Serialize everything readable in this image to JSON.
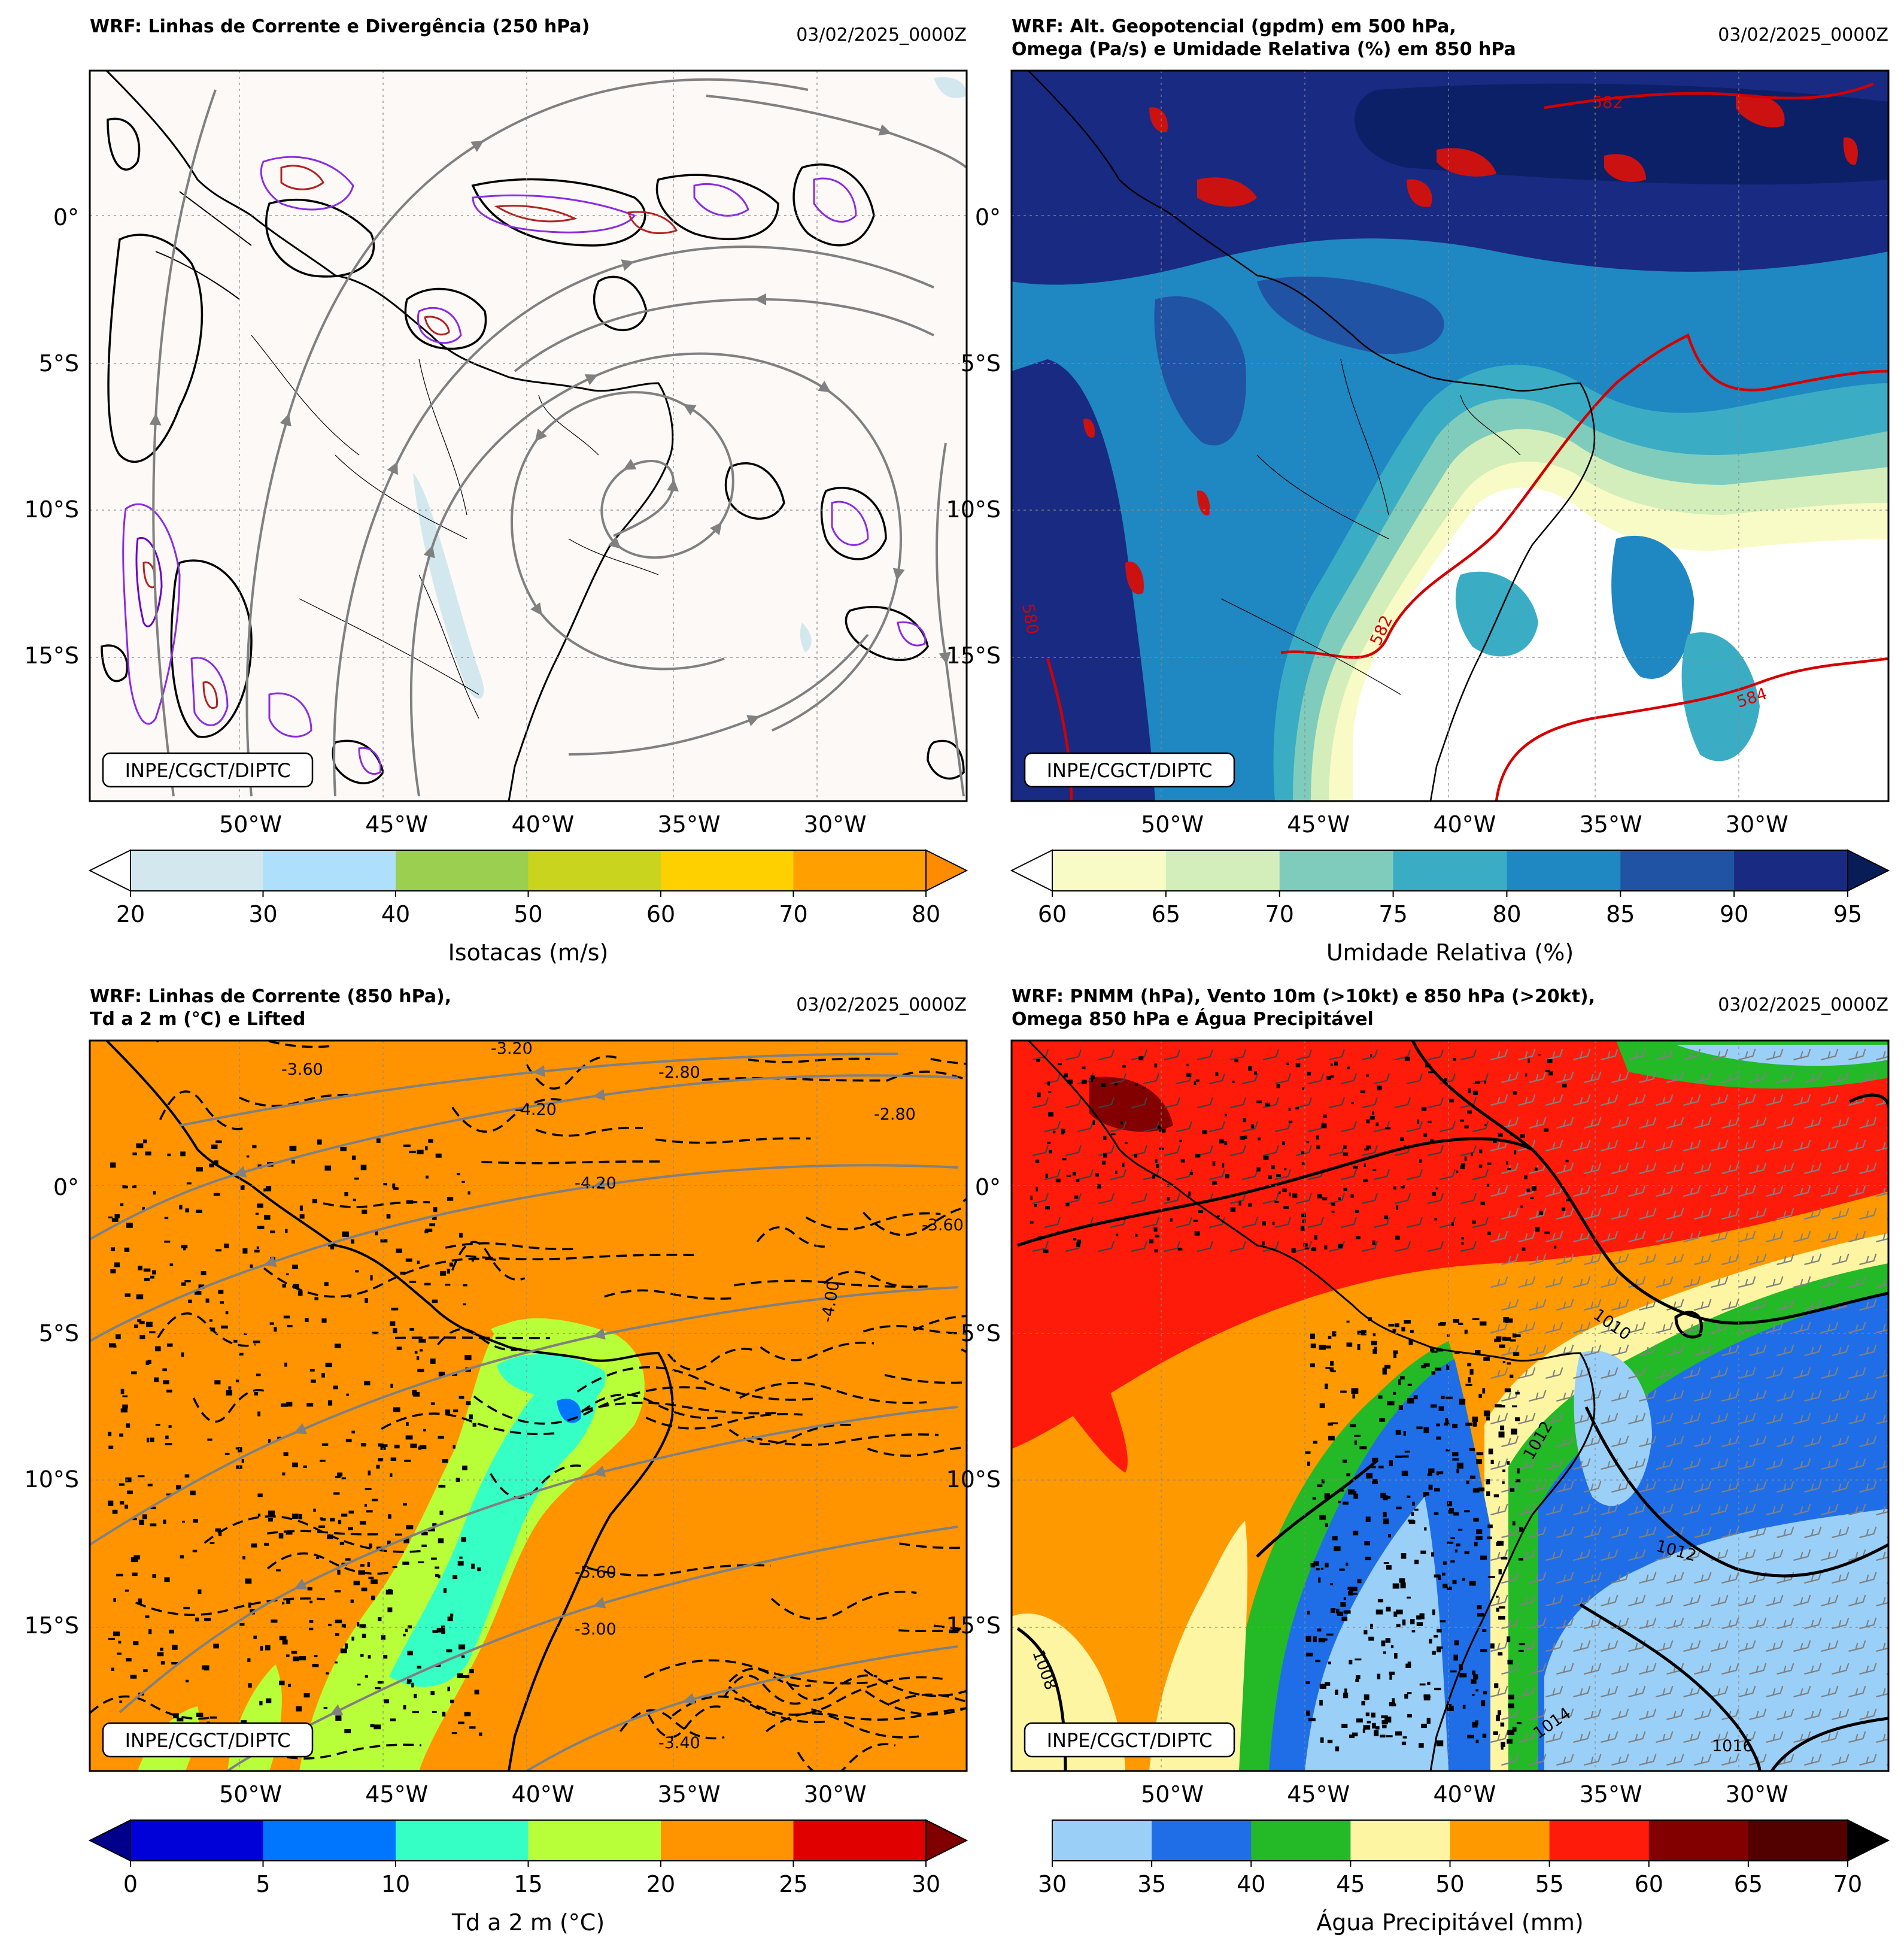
{
  "figure": {
    "organization_label": "INPE/CGCT/DIPTC",
    "datetime": "03/02/2025_0000Z"
  },
  "axes": {
    "lon_ticks": [
      "50°W",
      "45°W",
      "40°W",
      "35°W",
      "30°W"
    ],
    "lat_ticks": [
      "0°",
      "5°S",
      "10°S",
      "15°S"
    ],
    "lon_range": [
      -55.5,
      -25.5
    ],
    "lat_range": [
      -20,
      5
    ]
  },
  "panels": [
    {
      "id": "p1",
      "title_lines": [
        "WRF: Linhas de Corrente e Divergência (250 hPa)"
      ],
      "colorbar": {
        "label": "Isotacas (m/s)",
        "ticks": [
          "20",
          "30",
          "40",
          "50",
          "60",
          "70",
          "80"
        ],
        "colors": [
          "#d2e8ee",
          "#aee0fc",
          "#9acf50",
          "#c8d41e",
          "#ffd000",
          "#ffa000"
        ],
        "under_color": "#ffffff",
        "over_color": "#ff8c00"
      }
    },
    {
      "id": "p2",
      "title_lines": [
        "WRF: Alt. Geopotencial (gpdm) em 500 hPa,",
        "Omega (Pa/s) e Umidade Relativa (%) em 850 hPa"
      ],
      "contour_labels": [
        "582",
        "582",
        "584",
        "580"
      ],
      "colorbar": {
        "label": "Umidade Relativa (%)",
        "ticks": [
          "60",
          "65",
          "70",
          "75",
          "80",
          "85",
          "90",
          "95"
        ],
        "colors": [
          "#f8fbc6",
          "#d3eebb",
          "#80ccbc",
          "#3aadc5",
          "#1f87c1",
          "#2153a4",
          "#192a82"
        ],
        "under_color": "#ffffff",
        "over_color": "#081d58"
      }
    },
    {
      "id": "p3",
      "title_lines": [
        "WRF: Linhas de Corrente (850 hPa),",
        "Td a 2 m (°C) e Lifted"
      ],
      "contour_labels": [
        "-3.60",
        "-3.20",
        "-2.80",
        "-2.80",
        "-4.20",
        "-4.20",
        "-3.60",
        "-5.60",
        "-3.00",
        "-3.40",
        "-4.00"
      ],
      "colorbar": {
        "label": "Td a 2 m (°C)",
        "ticks": [
          "0",
          "5",
          "10",
          "15",
          "20",
          "25",
          "30"
        ],
        "colors": [
          "#0000d8",
          "#0076ff",
          "#36ffc5",
          "#b8ff3a",
          "#ff9400",
          "#e00000"
        ],
        "under_color": "#00008b",
        "over_color": "#800000"
      }
    },
    {
      "id": "p4",
      "title_lines": [
        "WRF: PNMM (hPa), Vento 10m (>10kt) e 850 hPa (>20kt),",
        "Omega 850 hPa e Água Precipitável"
      ],
      "contour_labels": [
        "1010",
        "1012",
        "1012",
        "1014",
        "1016",
        "1008"
      ],
      "colorbar": {
        "label": "Água Precipitável (mm)",
        "ticks": [
          "30",
          "35",
          "40",
          "45",
          "50",
          "55",
          "60",
          "65",
          "70"
        ],
        "colors": [
          "#9ad0f8",
          "#1f6ee8",
          "#24b927",
          "#fdf5a2",
          "#ff9900",
          "#ff1b0a",
          "#820000",
          "#520000"
        ],
        "over_color": "#000000"
      }
    }
  ]
}
